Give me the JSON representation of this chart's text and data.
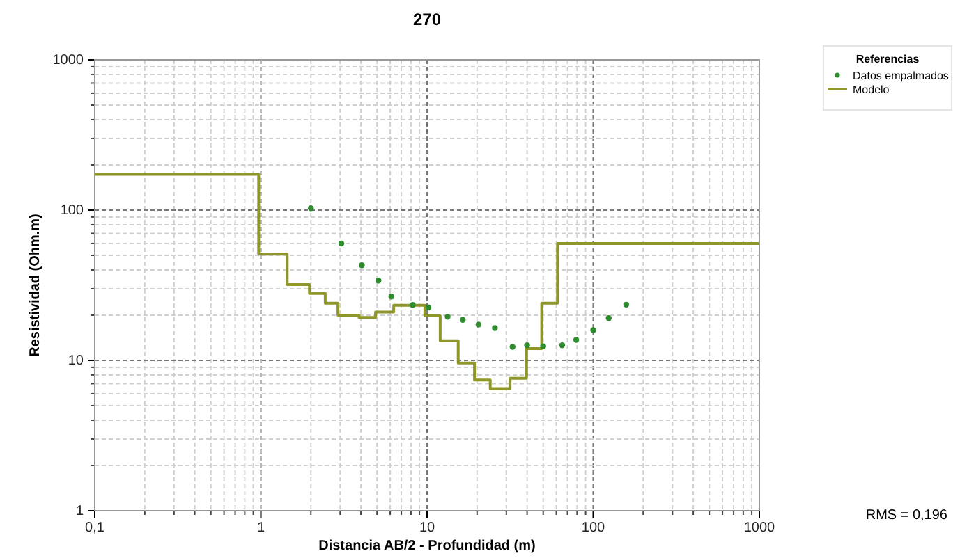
{
  "chart_data": {
    "type": "scatter",
    "title": "270",
    "xlabel": "Distancia AB/2 - Profundidad (m)",
    "ylabel": "Resistividad (Ohm.m)",
    "legend_title": "Referencias",
    "log": "xy",
    "grid": true,
    "legend": "top right",
    "xlim": [
      0.1,
      1000
    ],
    "ylim": [
      1,
      1000
    ],
    "xticks": [
      {
        "value": 0.1,
        "label": "0,1"
      },
      1,
      10,
      100,
      1000
    ],
    "yticks": [
      1,
      10,
      100,
      1000
    ],
    "annotations": [
      "RMS = 0,196"
    ],
    "series": [
      {
        "name": "Datos empalmados",
        "marker": "circle",
        "color": "#2e8b2e",
        "x": [
          2,
          3.05,
          4.05,
          5.1,
          6.1,
          8.2,
          10.2,
          13.3,
          16.4,
          20.4,
          25.6,
          32.7,
          40,
          50,
          65,
          79,
          100,
          124,
          158
        ],
        "values": [
          103,
          60,
          43,
          34,
          26.6,
          23.4,
          22.5,
          19.5,
          18.6,
          17.3,
          16.4,
          12.3,
          12.6,
          12.4,
          12.6,
          13.7,
          15.9,
          19.1,
          23.5
        ]
      },
      {
        "name": "Modelo",
        "type": "step",
        "line_style": "solid",
        "color": "#8f962a",
        "x": [
          0.1,
          0.97,
          1.44,
          1.96,
          2.44,
          2.91,
          3.9,
          4.9,
          6.3,
          9.7,
          12,
          15.4,
          19.3,
          24,
          31.6,
          39.7,
          49,
          61,
          1000
        ],
        "values": [
          173,
          51,
          32,
          27.9,
          24,
          20,
          19.3,
          21,
          23.3,
          19.8,
          13.5,
          9.6,
          7.4,
          6.5,
          7.6,
          12,
          24,
          60,
          60
        ]
      }
    ]
  }
}
